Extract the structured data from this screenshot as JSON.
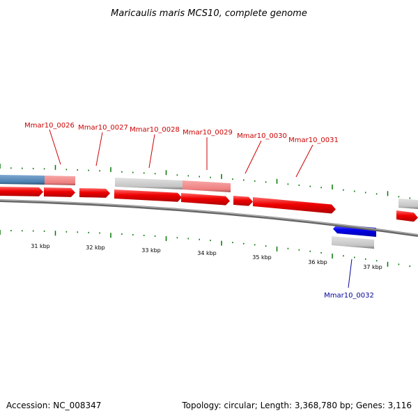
{
  "title": "Maricaulis maris MCS10, complete genome",
  "footer": {
    "accession": "Accession: NC_008347",
    "summary": "Topology: circular; Length: 3,368,780 bp; Genes: 3,116"
  },
  "scale_labels": [
    "31 kbp",
    "32 kbp",
    "33 kbp",
    "34 kbp",
    "35 kbp",
    "36 kbp",
    "37 kbp"
  ],
  "gene_labels": [
    {
      "text": "Mmar10_0026",
      "strand": "forward"
    },
    {
      "text": "Mmar10_0027",
      "strand": "forward"
    },
    {
      "text": "Mmar10_0028",
      "strand": "forward"
    },
    {
      "text": "Mmar10_0029",
      "strand": "forward"
    },
    {
      "text": "Mmar10_0030",
      "strand": "forward"
    },
    {
      "text": "Mmar10_0031",
      "strand": "forward"
    },
    {
      "text": "Mmar10_0032",
      "strand": "reverse"
    }
  ],
  "colors": {
    "forward_gene": "#ee0000",
    "reverse_gene": "#0000ee",
    "forward_label": "#cc0000",
    "reverse_label": "#000099",
    "tick": "#007700",
    "backbone": "#888888",
    "gray_feature": "#c8c8c8",
    "pink_feature": "#f08080",
    "steel_feature": "#4d84b5"
  }
}
